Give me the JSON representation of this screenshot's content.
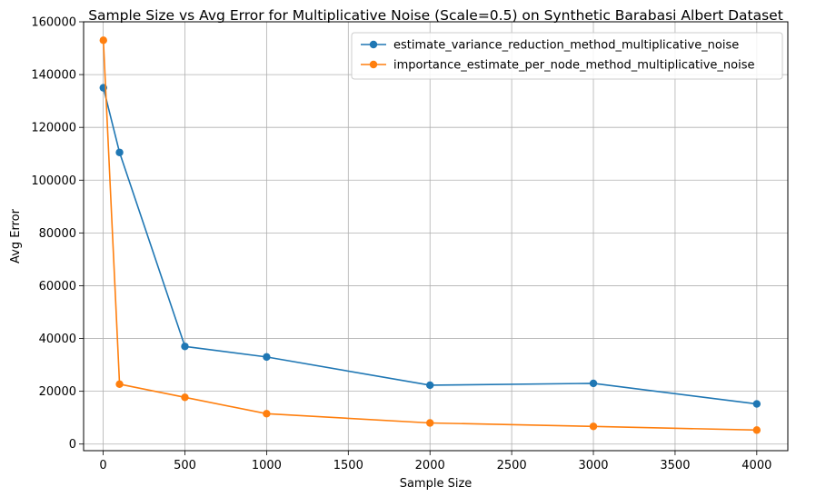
{
  "chart_data": {
    "type": "line",
    "title": "Sample Size vs Avg Error for Multiplicative Noise (Scale=0.5) on Synthetic Barabasi Albert Dataset",
    "xlabel": "Sample Size",
    "ylabel": "Avg Error",
    "xlim": [
      -120,
      4190
    ],
    "ylim": [
      -2500,
      160000
    ],
    "xticks": [
      0,
      500,
      1000,
      1500,
      2000,
      2500,
      3000,
      3500,
      4000
    ],
    "yticks": [
      0,
      20000,
      40000,
      60000,
      80000,
      100000,
      120000,
      140000,
      160000
    ],
    "grid": true,
    "legend_position": "top-right",
    "series": [
      {
        "name": "estimate_variance_reduction_method_multiplicative_noise",
        "color": "#1f77b4",
        "x": [
          1,
          100,
          500,
          1000,
          2000,
          3000,
          4000
        ],
        "y": [
          135000,
          110500,
          37000,
          33000,
          22300,
          23000,
          15200
        ]
      },
      {
        "name": "importance_estimate_per_node_method_multiplicative_noise",
        "color": "#ff7f0e",
        "x": [
          1,
          100,
          500,
          1000,
          2000,
          3000,
          4000
        ],
        "y": [
          153000,
          22700,
          17700,
          11500,
          8000,
          6700,
          5300
        ]
      }
    ]
  }
}
